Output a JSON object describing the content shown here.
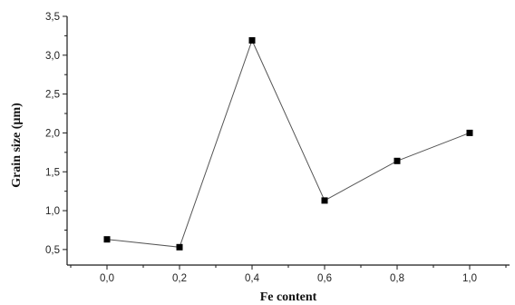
{
  "chart_data": {
    "type": "line",
    "title": "",
    "xlabel": "Fe content",
    "ylabel": "Grain size (µm)",
    "x": [
      0.0,
      0.2,
      0.4,
      0.6,
      0.8,
      1.0
    ],
    "xticks": [
      0.0,
      0.2,
      0.4,
      0.6,
      0.8,
      1.0
    ],
    "xtick_labels": [
      "0,0",
      "0,2",
      "0,4",
      "0,6",
      "0,8",
      "1,0"
    ],
    "xlim": [
      -0.11,
      1.11
    ],
    "yticks": [
      0.5,
      1.0,
      1.5,
      2.0,
      2.5,
      3.0,
      3.5
    ],
    "ytick_labels": [
      "0,5",
      "1,0",
      "1,5",
      "2,0",
      "2,5",
      "3,0",
      "3,5"
    ],
    "ylim": [
      0.3,
      3.5
    ],
    "series": [
      {
        "values": [
          0.63,
          0.53,
          3.19,
          1.13,
          1.64,
          2.0
        ],
        "color": "#555555",
        "marker": "square",
        "marker_color": "#000000"
      }
    ],
    "grid": false,
    "legend": "none"
  }
}
